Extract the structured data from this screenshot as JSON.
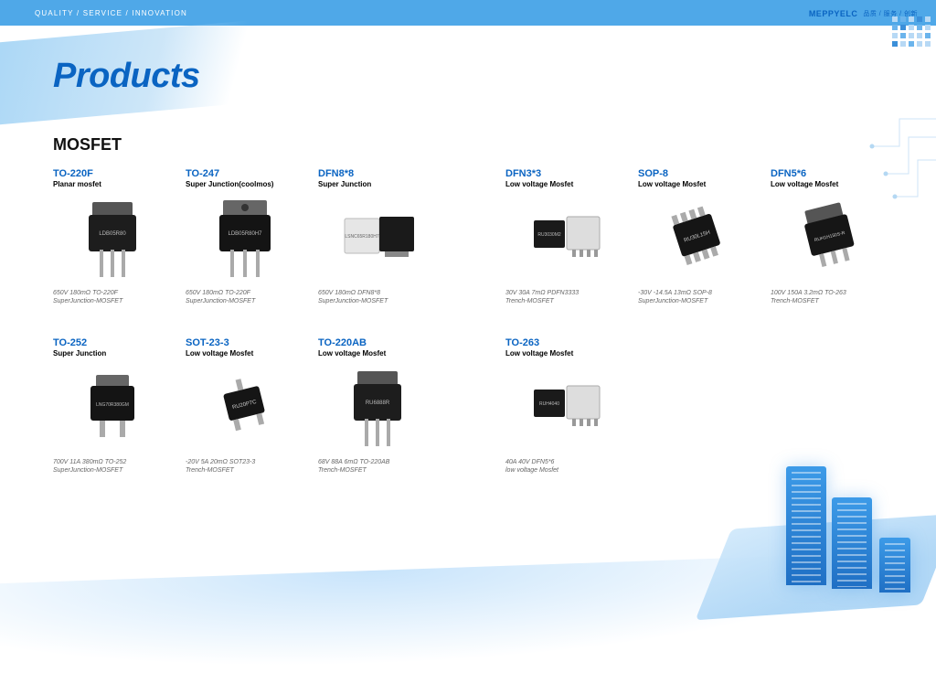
{
  "header": {
    "tagline": "QUALITY / SERVICE / INNOVATION",
    "brand": "MEPPYELC",
    "brand_sub": "品质 / 服务 / 创新"
  },
  "page": {
    "title": "Products",
    "section": "MOSFET"
  },
  "colors": {
    "brand_blue": "#0a64c2",
    "header_bg": "#4fa8e8",
    "desc_gray": "#666666"
  },
  "products_row1": [
    {
      "name": "TO-220F",
      "sub": "Planar mosfet",
      "desc1": "650V 180mΩ TO-220F",
      "desc2": "SuperJunction-MOSFET",
      "pkg": "to220"
    },
    {
      "name": "TO-247",
      "sub": "Super Junction(coolmos)",
      "desc1": "650V 180mΩ TO-220F",
      "desc2": "SuperJunction-MOSFET",
      "pkg": "to247"
    },
    {
      "name": "DFN8*8",
      "sub": "Super Junction",
      "desc1": "650V 180mΩ DFN8*8",
      "desc2": "SuperJunction-MOSFET",
      "pkg": "dfn88"
    },
    {
      "name": "DFN3*3",
      "sub": "Low voltage Mosfet",
      "desc1": "30V 30A 7mΩ PDFN3333",
      "desc2": "Trench-MOSFET",
      "pkg": "dfn33"
    },
    {
      "name": "SOP-8",
      "sub": "Low voltage Mosfet",
      "desc1": "-30V -14.5A 13mΩ SOP-8",
      "desc2": "SuperJunction-MOSFET",
      "pkg": "sop8"
    },
    {
      "name": "DFN5*6",
      "sub": "Low voltage Mosfet",
      "desc1": "100V 150A 3.2mΩ TO-263",
      "desc2": "Trench-MOSFET",
      "pkg": "to263b"
    }
  ],
  "products_row2": [
    {
      "name": "TO-252",
      "sub": "Super Junction",
      "desc1": "700V 11A 380mΩ TO-252",
      "desc2": "SuperJunction-MOSFET",
      "pkg": "to252"
    },
    {
      "name": "SOT-23-3",
      "sub": "Low voltage Mosfet",
      "desc1": "-20V 5A 20mΩ SOT23-3",
      "desc2": "Trench-MOSFET",
      "pkg": "sot23"
    },
    {
      "name": "TO-220AB",
      "sub": "Low voltage Mosfet",
      "desc1": "68V 88A 6mΩ TO-220AB",
      "desc2": "Trench-MOSFET",
      "pkg": "to220ab"
    },
    {
      "name": "TO-263",
      "sub": "Low voltage Mosfet",
      "desc1": "40A 40V DFN5*6",
      "desc2": "low voltage Mosfet",
      "pkg": "to263"
    }
  ]
}
